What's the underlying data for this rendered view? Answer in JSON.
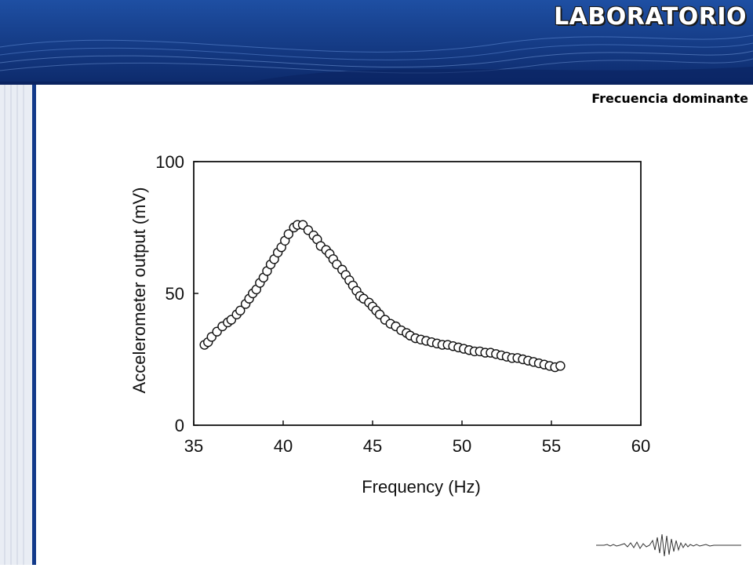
{
  "header": {
    "title": "LABORATORIO"
  },
  "subtitle": "Frecuencia dominante",
  "colors": {
    "header_dark": "#0d2a6b",
    "header_mid": "#1e4fa3",
    "frame_blue": "#123a8a"
  },
  "icons": {
    "seismogram": "seismogram-icon"
  },
  "chart_data": {
    "type": "scatter",
    "xlabel": "Frequency (Hz)",
    "ylabel": "Accelerometer output (mV)",
    "xlim": [
      35,
      60
    ],
    "ylim": [
      0,
      100
    ],
    "x_ticks": [
      "35",
      "40",
      "45",
      "50",
      "55",
      "60"
    ],
    "y_ticks": [
      "0",
      "50",
      "100"
    ],
    "grid": false,
    "marker": "open-circle",
    "series": [
      {
        "points": [
          [
            35.6,
            30.5
          ],
          [
            35.8,
            31.5
          ],
          [
            36.0,
            33.5
          ],
          [
            36.3,
            35.5
          ],
          [
            36.6,
            37.5
          ],
          [
            36.9,
            39.0
          ],
          [
            37.1,
            40.0
          ],
          [
            37.4,
            42.0
          ],
          [
            37.6,
            43.5
          ],
          [
            37.9,
            46.0
          ],
          [
            38.1,
            48.0
          ],
          [
            38.3,
            50.0
          ],
          [
            38.5,
            51.5
          ],
          [
            38.7,
            54.0
          ],
          [
            38.9,
            56.0
          ],
          [
            39.1,
            58.5
          ],
          [
            39.3,
            61.0
          ],
          [
            39.5,
            63.0
          ],
          [
            39.7,
            65.5
          ],
          [
            39.9,
            67.5
          ],
          [
            40.1,
            70.0
          ],
          [
            40.3,
            72.5
          ],
          [
            40.6,
            75.0
          ],
          [
            40.8,
            76.0
          ],
          [
            41.1,
            76.0
          ],
          [
            41.4,
            74.0
          ],
          [
            41.7,
            72.0
          ],
          [
            41.9,
            70.5
          ],
          [
            42.1,
            68.0
          ],
          [
            42.4,
            66.5
          ],
          [
            42.6,
            65.0
          ],
          [
            42.8,
            63.0
          ],
          [
            43.0,
            61.0
          ],
          [
            43.3,
            59.0
          ],
          [
            43.5,
            57.0
          ],
          [
            43.7,
            55.0
          ],
          [
            43.9,
            53.0
          ],
          [
            44.1,
            51.0
          ],
          [
            44.3,
            49.0
          ],
          [
            44.5,
            48.0
          ],
          [
            44.8,
            46.5
          ],
          [
            45.0,
            45.0
          ],
          [
            45.2,
            43.5
          ],
          [
            45.4,
            42.0
          ],
          [
            45.7,
            40.0
          ],
          [
            46.0,
            38.5
          ],
          [
            46.3,
            37.5
          ],
          [
            46.6,
            36.0
          ],
          [
            46.9,
            35.0
          ],
          [
            47.1,
            34.0
          ],
          [
            47.4,
            33.0
          ],
          [
            47.7,
            32.5
          ],
          [
            48.0,
            32.0
          ],
          [
            48.3,
            31.5
          ],
          [
            48.6,
            31.0
          ],
          [
            48.9,
            30.5
          ],
          [
            49.2,
            30.5
          ],
          [
            49.5,
            30.0
          ],
          [
            49.8,
            29.5
          ],
          [
            50.1,
            29.0
          ],
          [
            50.4,
            28.5
          ],
          [
            50.7,
            28.0
          ],
          [
            51.0,
            28.0
          ],
          [
            51.3,
            27.5
          ],
          [
            51.6,
            27.5
          ],
          [
            51.9,
            27.0
          ],
          [
            52.2,
            26.5
          ],
          [
            52.5,
            26.0
          ],
          [
            52.8,
            25.5
          ],
          [
            53.1,
            25.5
          ],
          [
            53.4,
            25.0
          ],
          [
            53.7,
            24.5
          ],
          [
            54.0,
            24.0
          ],
          [
            54.3,
            23.5
          ],
          [
            54.6,
            23.0
          ],
          [
            54.9,
            22.5
          ],
          [
            55.2,
            22.0
          ],
          [
            55.5,
            22.5
          ]
        ]
      }
    ]
  }
}
